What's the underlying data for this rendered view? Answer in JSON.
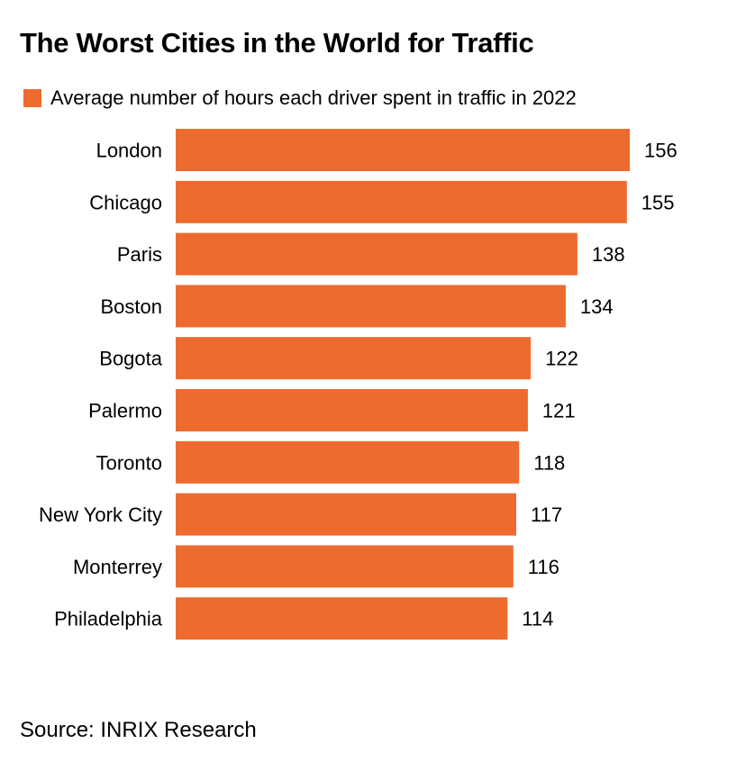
{
  "chart_data": {
    "type": "bar",
    "orientation": "horizontal",
    "title": "The Worst Cities in the World for Traffic",
    "legend": [
      "Average number of hours each driver spent in traffic in 2022"
    ],
    "categories": [
      "London",
      "Chicago",
      "Paris",
      "Boston",
      "Bogota",
      "Palermo",
      "Toronto",
      "New York City",
      "Monterrey",
      "Philadelphia"
    ],
    "values": [
      156,
      155,
      138,
      134,
      122,
      121,
      118,
      117,
      116,
      114
    ],
    "xlim": [
      0,
      156
    ],
    "xlabel": "",
    "ylabel": "",
    "grid": false
  },
  "colors": {
    "bar": "#EE6B2F",
    "text": "#000000",
    "background": "#FFFFFF"
  },
  "source": "Source: INRIX Research"
}
